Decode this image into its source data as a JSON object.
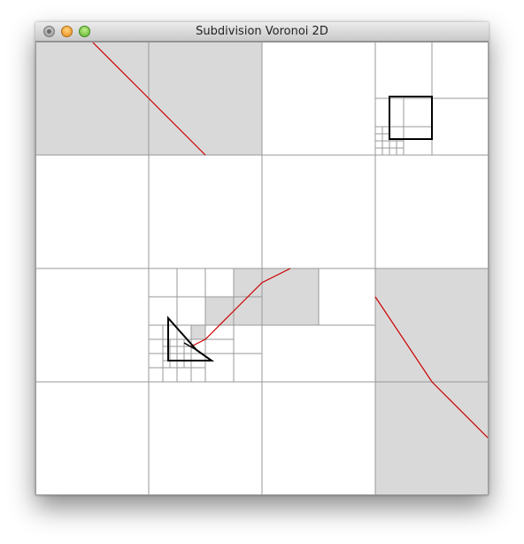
{
  "window": {
    "title": "Subdivision Voronoi 2D",
    "buttons": [
      "close",
      "minimize",
      "zoom"
    ]
  },
  "canvas": {
    "background": "#ffffff",
    "filled_cell_color": "#d9d9d9",
    "grid_line_color": "#999999",
    "curve_color": "#cc0000",
    "shape_color": "#000000"
  }
}
